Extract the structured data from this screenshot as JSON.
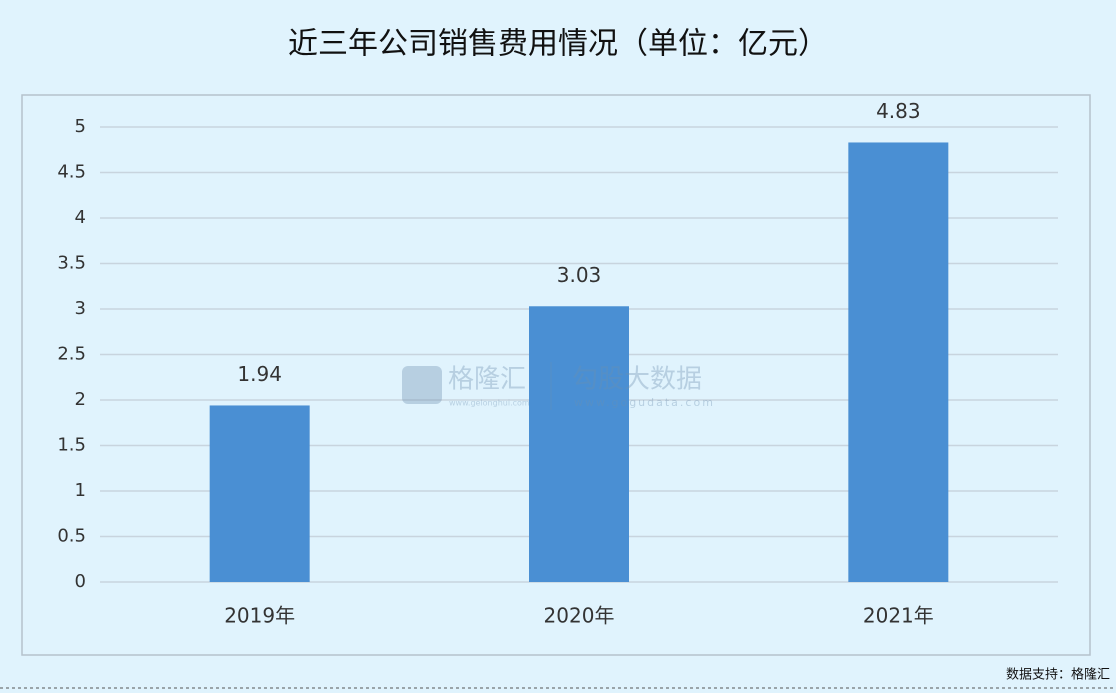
{
  "chart_data": {
    "type": "bar",
    "title": "近三年公司销售费用情况（单位：亿元）",
    "categories": [
      "2019年",
      "2020年",
      "2021年"
    ],
    "values": [
      1.94,
      3.03,
      4.83
    ],
    "color": "#4a8fd3",
    "ylim": [
      0,
      5
    ],
    "yticks": [
      0,
      0.5,
      1,
      1.5,
      2,
      2.5,
      3,
      3.5,
      4,
      4.5,
      5
    ],
    "grid": true,
    "annotations": [
      "格隆汇",
      "www.gelonghui.com",
      "勾股大数据",
      "www.gogudata.com"
    ],
    "source": "数据支持：格隆汇"
  }
}
